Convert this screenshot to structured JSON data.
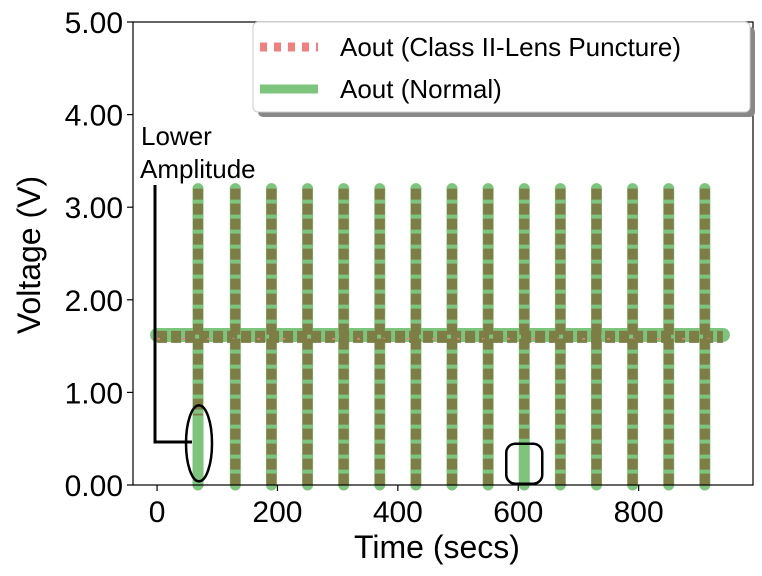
{
  "chart_data": {
    "type": "line",
    "title": "",
    "xlabel": "Time (secs)",
    "ylabel": "Voltage (V)",
    "xlim": [
      -40,
      990
    ],
    "ylim": [
      0,
      5
    ],
    "x_ticks": [
      0,
      200,
      400,
      600,
      800
    ],
    "x_tick_labels": [
      "0",
      "200",
      "400",
      "600",
      "800"
    ],
    "y_ticks": [
      0,
      1,
      2,
      3,
      4,
      5
    ],
    "y_tick_labels": [
      "0.00",
      "1.00",
      "2.00",
      "3.00",
      "4.00",
      "5.00"
    ],
    "grid": false,
    "legend_position": "top-right",
    "baseline_range": [
      0,
      940
    ],
    "series": [
      {
        "name": "Aout (Class II-Lens Puncture)",
        "color": "#f08080",
        "style": "dotted",
        "baseline": 1.6,
        "spike_times": [
          68,
          130,
          190,
          250,
          310,
          370,
          430,
          490,
          550,
          610,
          670,
          730,
          790,
          850,
          910
        ],
        "spike_high": 3.2,
        "spike_low": 0.0
      },
      {
        "name": "Aout (Normal)",
        "color": "#7dc47d",
        "style": "solid",
        "baseline": 1.62,
        "spike_times": [
          68,
          130,
          190,
          250,
          310,
          370,
          430,
          490,
          550,
          610,
          670,
          730,
          790,
          850,
          910
        ],
        "spike_high": 3.2,
        "spike_low": 0.0
      }
    ],
    "overlap_color": "#7d7d45",
    "annotations": [
      {
        "text": "Lower Amplitude",
        "lines": [
          "Lower",
          "Amplitude"
        ]
      },
      {
        "shape": "ellipse",
        "x": 68,
        "y_center": 0.45
      },
      {
        "shape": "rounded-rect",
        "x": 610,
        "y_center": 0.23
      }
    ]
  }
}
